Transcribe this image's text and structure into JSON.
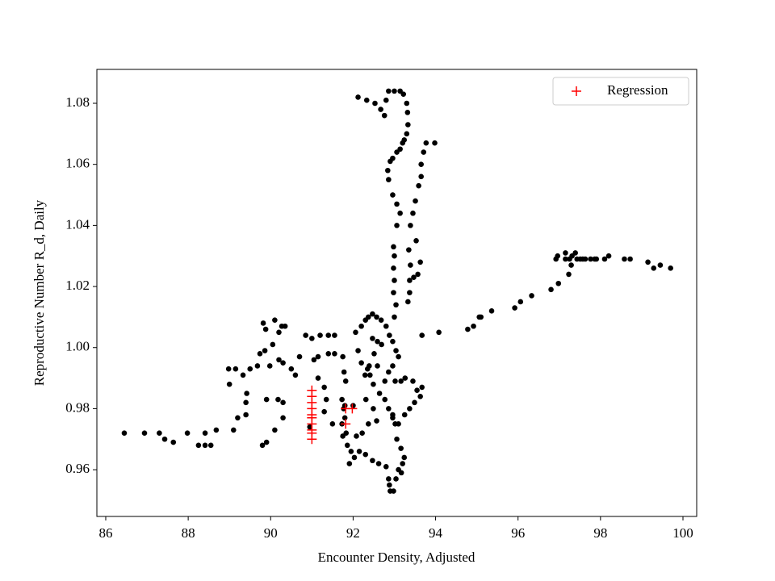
{
  "chart_data": {
    "type": "scatter",
    "xlabel": "Encounter Density, Adjusted",
    "ylabel": "Reproductive Number R_d, Daily",
    "xlim": [
      85.785,
      100.333
    ],
    "ylim": [
      0.9447,
      1.0911
    ],
    "xticks": [
      86,
      88,
      90,
      92,
      94,
      96,
      98,
      100
    ],
    "yticks": [
      0.96,
      0.98,
      {
        "value": 1,
        "label": "1.00"
      },
      1.02,
      1.04,
      1.06,
      1.08
    ],
    "legend": "upper right",
    "series": [
      {
        "color": "#000000",
        "marker": "o",
        "x": [
          86.45,
          86.94,
          87.3,
          87.43,
          87.64,
          87.98,
          88.25,
          88.41,
          88.55,
          88.41,
          88.68,
          89.1,
          89.2,
          89.4,
          89.4,
          89.42,
          88.98,
          89.0,
          89.15,
          89.33,
          89.5,
          89.68,
          89.74,
          89.86,
          89.82,
          89.88,
          90.1,
          90.27,
          90.35,
          90.2,
          90.05,
          89.98,
          90.2,
          90.3,
          90.5,
          90.6,
          90.7,
          90.85,
          91.0,
          91.2,
          91.4,
          91.55,
          91.55,
          91.4,
          91.15,
          91.05,
          91.15,
          91.3,
          91.35,
          91.3,
          91.5,
          90.95,
          90.3,
          90.18,
          89.9,
          89.8,
          89.9,
          90.1,
          90.3,
          91.75,
          91.78,
          91.82,
          91.73,
          91.77,
          91.8,
          91.73,
          91.75,
          91.86,
          91.95,
          91.91,
          92.03,
          92.15,
          92.3,
          92.47,
          92.62,
          92.8,
          92.86,
          92.88,
          92.9,
          92.98,
          93.04,
          93.1,
          93.17,
          93.2,
          93.24,
          93.16,
          93.06,
          93.02,
          92.96,
          92.86,
          92.77,
          92.64,
          92.49,
          92.41,
          92.35,
          92.2,
          92.12,
          92.06,
          92.2,
          92.3,
          92.37,
          92.47,
          92.57,
          92.68,
          92.8,
          92.88,
          92.96,
          93.04,
          93.1,
          92.96,
          92.86,
          92.77,
          93.02,
          93.16,
          93.26,
          93.45,
          93.55,
          93.63,
          93.67,
          93.49,
          93.37,
          93.25,
          93.1,
          92.96,
          92.57,
          92.37,
          92.22,
          92.08,
          91.83,
          91.8,
          92.0,
          92.31,
          92.49,
          92.69,
          92.59,
          92.47,
          92.51,
          92.59,
          92.39,
          92.29,
          93.0,
          93.04,
          92.98,
          93.0,
          92.98,
          93.0,
          92.98,
          93.06,
          93.14,
          93.06,
          92.96,
          92.86,
          92.84,
          92.9,
          92.96,
          93.06,
          93.14,
          93.2,
          93.24,
          93.3,
          93.33,
          93.32,
          93.3,
          93.22,
          93.14,
          93.0,
          92.86,
          92.8,
          92.76,
          92.67,
          92.53,
          92.33,
          92.12,
          93.33,
          93.37,
          93.37,
          93.39,
          93.35,
          93.39,
          93.45,
          93.51,
          93.59,
          93.65,
          93.65,
          93.71,
          93.77,
          93.98,
          93.53,
          93.63,
          93.57,
          93.47,
          93.67,
          94.08,
          94.78,
          94.92,
          95.06,
          95.1,
          95.36,
          95.92,
          96.06,
          96.33,
          96.8,
          96.98,
          97.23,
          97.29,
          97.31,
          97.39,
          97.15,
          96.96,
          96.92,
          97.15,
          97.25,
          97.43,
          97.57,
          97.86,
          98.1,
          98.2,
          97.9,
          97.76,
          97.63,
          97.51,
          98.58,
          98.72,
          99.15,
          99.29,
          99.45,
          99.7
        ],
        "values": [
          0.972,
          0.972,
          0.972,
          0.97,
          0.969,
          0.972,
          0.968,
          0.968,
          0.968,
          0.972,
          0.973,
          0.973,
          0.977,
          0.978,
          0.982,
          0.985,
          0.993,
          0.988,
          0.993,
          0.991,
          0.993,
          0.994,
          0.998,
          0.999,
          1.008,
          1.006,
          1.009,
          1.007,
          1.007,
          1.005,
          1.001,
          0.994,
          0.996,
          0.995,
          0.993,
          0.991,
          0.997,
          1.004,
          1.003,
          1.004,
          1.004,
          1.004,
          0.998,
          0.998,
          0.997,
          0.996,
          0.99,
          0.987,
          0.983,
          0.979,
          0.975,
          0.974,
          0.982,
          0.983,
          0.983,
          0.968,
          0.969,
          0.973,
          0.977,
          0.997,
          0.992,
          0.989,
          0.983,
          0.98,
          0.977,
          0.975,
          0.971,
          0.968,
          0.966,
          0.962,
          0.964,
          0.966,
          0.965,
          0.963,
          0.962,
          0.961,
          0.957,
          0.955,
          0.953,
          0.953,
          0.957,
          0.96,
          0.959,
          0.962,
          0.964,
          0.967,
          0.97,
          0.975,
          0.978,
          0.98,
          0.983,
          0.985,
          0.988,
          0.991,
          0.993,
          0.995,
          0.999,
          1.005,
          1.007,
          1.009,
          1.01,
          1.011,
          1.01,
          1.009,
          1.007,
          1.004,
          1.002,
          0.999,
          0.997,
          0.994,
          0.992,
          0.989,
          0.989,
          0.989,
          0.99,
          0.989,
          0.986,
          0.984,
          0.987,
          0.982,
          0.98,
          0.978,
          0.975,
          0.977,
          0.976,
          0.975,
          0.972,
          0.971,
          0.972,
          0.981,
          0.981,
          0.983,
          0.98,
          1.001,
          1.002,
          1.003,
          0.998,
          0.994,
          0.994,
          0.991,
          1.01,
          1.014,
          1.018,
          1.022,
          1.026,
          1.03,
          1.033,
          1.04,
          1.044,
          1.047,
          1.05,
          1.055,
          1.058,
          1.061,
          1.062,
          1.064,
          1.065,
          1.067,
          1.068,
          1.07,
          1.073,
          1.077,
          1.08,
          1.083,
          1.084,
          1.084,
          1.084,
          1.081,
          1.076,
          1.078,
          1.08,
          1.081,
          1.082,
          1.015,
          1.018,
          1.022,
          1.027,
          1.032,
          1.04,
          1.044,
          1.048,
          1.053,
          1.056,
          1.06,
          1.064,
          1.067,
          1.067,
          1.035,
          1.028,
          1.024,
          1.023,
          1.004,
          1.005,
          1.006,
          1.007,
          1.01,
          1.01,
          1.012,
          1.013,
          1.015,
          1.017,
          1.019,
          1.021,
          1.024,
          1.027,
          1.03,
          1.031,
          1.031,
          1.03,
          1.029,
          1.029,
          1.029,
          1.029,
          1.029,
          1.029,
          1.029,
          1.03,
          1.029,
          1.029,
          1.029,
          1.029,
          1.029,
          1.029,
          1.028,
          1.026,
          1.027,
          1.026
        ]
      },
      {
        "name": "Regression",
        "color": "#ff0000",
        "marker": "+",
        "x": [
          91.0,
          91.0,
          91.0,
          91.0,
          91.0,
          91.0,
          91.0,
          91.0,
          91.0,
          91.0,
          91.82,
          91.98,
          91.82
        ],
        "values": [
          0.986,
          0.984,
          0.982,
          0.98,
          0.978,
          0.977,
          0.975,
          0.973,
          0.972,
          0.97,
          0.98,
          0.98,
          0.975
        ]
      }
    ]
  }
}
